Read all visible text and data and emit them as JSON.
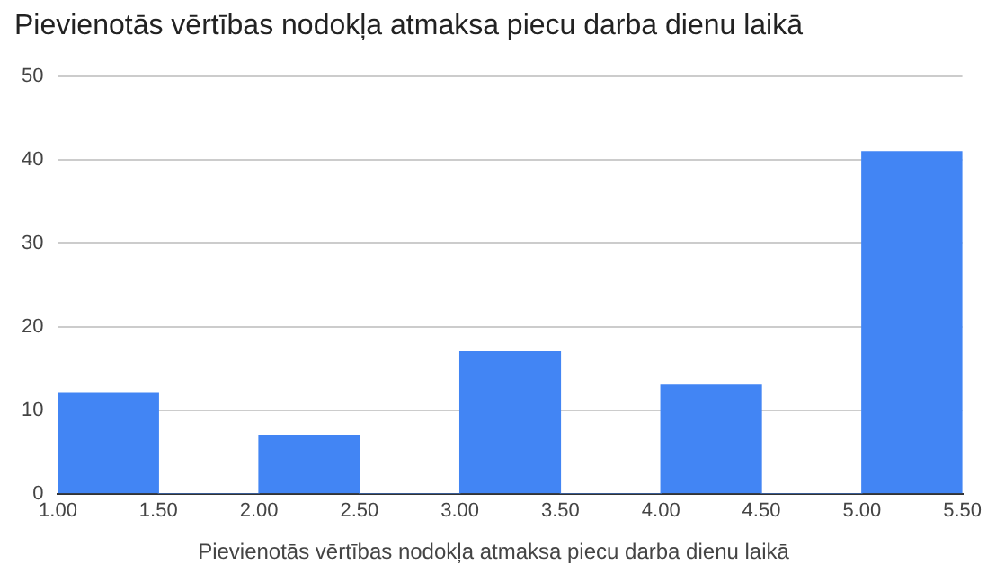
{
  "chart_data": {
    "type": "histogram",
    "title": "Pievienotās vērtības nodokļa atmaksa piecu darba dienu laikā",
    "xlabel": "Pievienotās vērtības nodokļa atmaksa piecu darba dienu laikā",
    "bins": [
      1,
      1.5,
      2,
      2.5,
      3,
      3.5,
      4,
      4.5,
      5,
      5.5
    ],
    "values": [
      12,
      0,
      7,
      0,
      17,
      0,
      13,
      0,
      41
    ],
    "color": "#4285f4",
    "xlim": [
      1,
      5.5
    ],
    "xticks": [
      {
        "value": 1,
        "label": "1.00"
      },
      {
        "value": 1.5,
        "label": "1.50"
      },
      {
        "value": 2,
        "label": "2.00"
      },
      {
        "value": 2.5,
        "label": "2.50"
      },
      {
        "value": 3,
        "label": "3.00"
      },
      {
        "value": 3.5,
        "label": "3.50"
      },
      {
        "value": 4,
        "label": "4.00"
      },
      {
        "value": 4.5,
        "label": "4.50"
      },
      {
        "value": 5,
        "label": "5.00"
      },
      {
        "value": 5.5,
        "label": "5.50"
      }
    ],
    "ylim": [
      0,
      50
    ],
    "yticks": [
      0,
      10,
      20,
      30,
      40,
      50
    ],
    "grid": "y",
    "legend": false
  }
}
